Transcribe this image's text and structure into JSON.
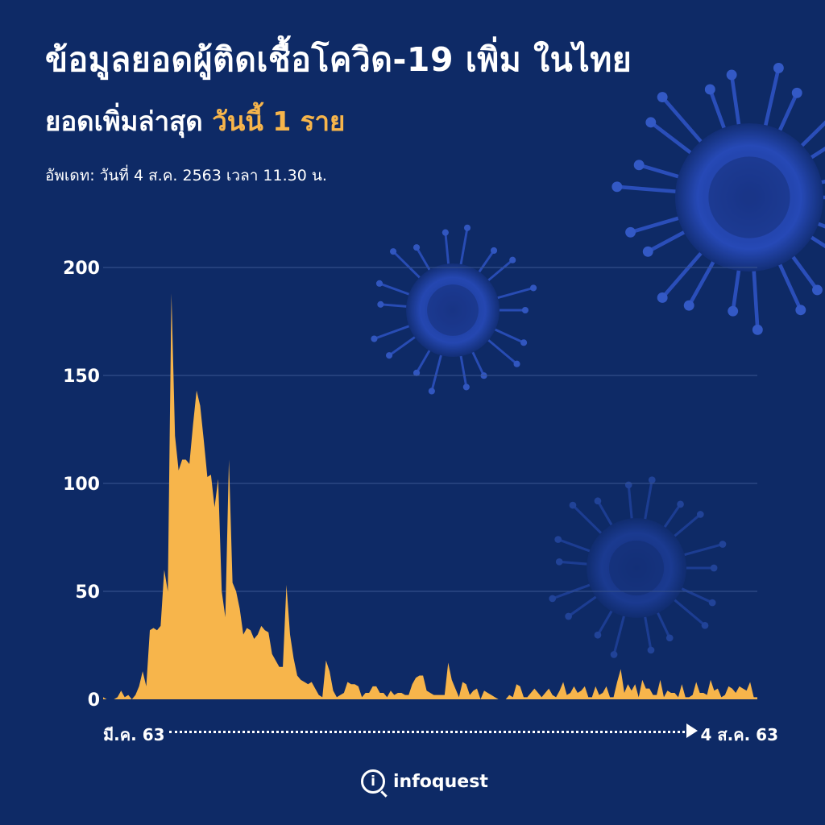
{
  "header": {
    "title": "ข้อมูลยอดผู้ติดเชื้อโควิด-19 เพิ่ม ในไทย",
    "subtitle_prefix": "ยอดเพิ่มล่าสุด",
    "subtitle_highlight": "วันนี้ 1 ราย",
    "updated": "อัพเดท: วันที่ 4 ส.ค. 2563 เวลา 11.30 น."
  },
  "footer": {
    "brand": "infoquest",
    "logo_letter": "i"
  },
  "colors": {
    "background": "#0e2a66",
    "area": "#f7b54b",
    "accent": "#f7b54b",
    "grid": "#3a5591"
  },
  "chart_data": {
    "type": "area",
    "title": "ข้อมูลยอดผู้ติดเชื้อโควิด-19 เพิ่ม ในไทย",
    "xlabel": "",
    "ylabel": "",
    "x_start_label": "มี.ค. 63",
    "x_end_label": "4 ส.ค. 63",
    "y_ticks": [
      0,
      50,
      100,
      150,
      200
    ],
    "ylim": [
      0,
      200
    ],
    "grid": true,
    "values": [
      1,
      0,
      0,
      0,
      1,
      4,
      1,
      2,
      0,
      2,
      6,
      13,
      6,
      32,
      33,
      32,
      34,
      60,
      50,
      188,
      122,
      106,
      111,
      111,
      109,
      127,
      143,
      136,
      120,
      103,
      104,
      89,
      102,
      50,
      38,
      111,
      54,
      50,
      42,
      30,
      33,
      32,
      28,
      30,
      34,
      32,
      31,
      21,
      18,
      15,
      15,
      53,
      30,
      19,
      11,
      9,
      8,
      7,
      8,
      5,
      2,
      1,
      18,
      13,
      4,
      1,
      2,
      3,
      8,
      7,
      7,
      6,
      1,
      3,
      3,
      6,
      6,
      3,
      3,
      1,
      4,
      2,
      3,
      3,
      2,
      2,
      7,
      10,
      11,
      11,
      4,
      3,
      2,
      2,
      2,
      2,
      17,
      9,
      5,
      1,
      8,
      7,
      2,
      4,
      5,
      0,
      4,
      3,
      2,
      1,
      0,
      0,
      0,
      2,
      1,
      7,
      6,
      1,
      1,
      3,
      5,
      3,
      1,
      3,
      5,
      2,
      1,
      4,
      8,
      2,
      3,
      6,
      3,
      4,
      6,
      1,
      1,
      6,
      2,
      3,
      6,
      1,
      1,
      8,
      14,
      3,
      7,
      4,
      7,
      1,
      9,
      5,
      5,
      2,
      2,
      9,
      1,
      4,
      3,
      3,
      1,
      7,
      1,
      1,
      2,
      8,
      3,
      3,
      2,
      9,
      4,
      5,
      1,
      2,
      6,
      5,
      3,
      6,
      5,
      4,
      8,
      1,
      1
    ]
  }
}
